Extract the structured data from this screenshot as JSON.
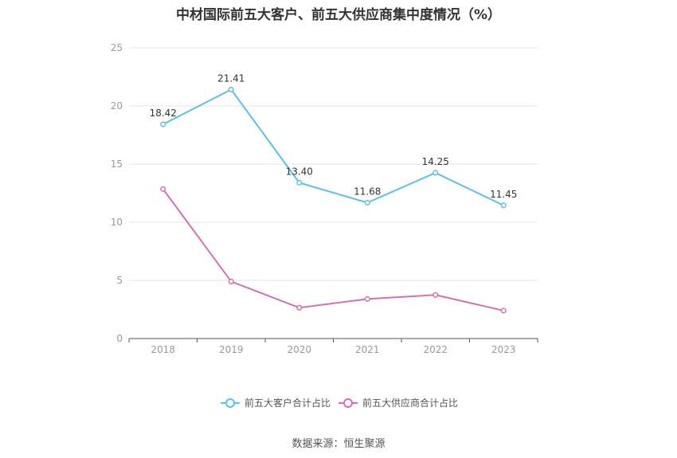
{
  "title": "中材国际前五大客户、前五大供应商集中度情况（%）",
  "source": "数据来源：恒生聚源",
  "chart_data": {
    "type": "line",
    "categories": [
      "2018",
      "2019",
      "2020",
      "2021",
      "2022",
      "2023"
    ],
    "ylim": [
      0,
      25
    ],
    "yticks": [
      0,
      5,
      10,
      15,
      20,
      25
    ],
    "grid": true,
    "legend_position": "bottom",
    "series": [
      {
        "name": "前五大客户合计占比",
        "color": "#5bc0eb",
        "values": [
          18.42,
          21.41,
          13.4,
          11.68,
          14.25,
          11.45
        ],
        "labels": [
          "18.42",
          "21.41",
          "13.40",
          "11.68",
          "14.25",
          "11.45"
        ]
      },
      {
        "name": "前五大供应商合计占比",
        "color": "#d36fb4",
        "values": [
          12.85,
          4.9,
          2.65,
          3.4,
          3.75,
          2.4
        ],
        "labels": null
      }
    ]
  }
}
